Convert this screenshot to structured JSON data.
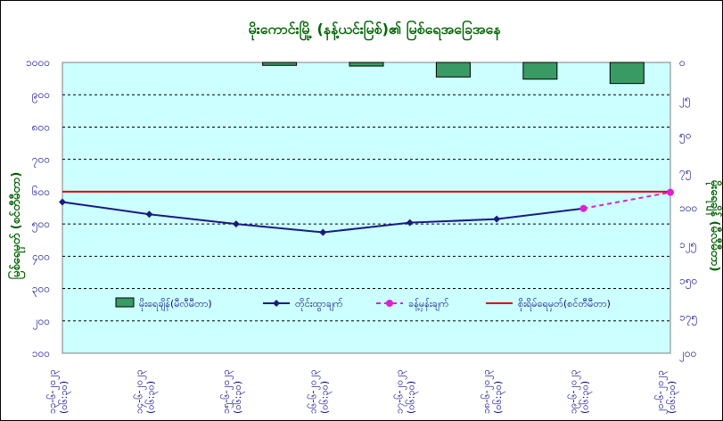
{
  "chart_data": {
    "type": "bar+line",
    "title": "မိုးကောင်းမြို့ (နန့်ယင်းမြစ်)၏ မြစ်ရေအခြေအနေ",
    "ylabel_left": "မြစ်ရေမှတ် (စင်တီမီတာ)",
    "ylabel_right": "မိုးရေချိန် (မီလီမီတာ)",
    "left_axis": {
      "min": 100,
      "max": 1000,
      "ticks": [
        "၁၀၀",
        "၂၀၀",
        "၃၀၀",
        "၄၀၀",
        "၅၀၀",
        "၆၀၀",
        "၇၀၀",
        "၈၀၀",
        "၉၀၀",
        "၁၀၀၀"
      ],
      "tick_values": [
        100,
        200,
        300,
        400,
        500,
        600,
        700,
        800,
        900,
        1000
      ]
    },
    "right_axis": {
      "min": 0,
      "max": 200,
      "inverted": true,
      "ticks": [
        "၀",
        "၂၅",
        "၅၀",
        "၇၅",
        "၁၀၀",
        "၁၂၅",
        "၁၅၀",
        "၁၇၅",
        "၂၀၀"
      ],
      "tick_values": [
        0,
        25,
        50,
        75,
        100,
        125,
        150,
        175,
        200
      ]
    },
    "categories": [
      {
        "line1": "၁၃-၆-၂၀၂၃",
        "line2": "(၀၆:၃၀)"
      },
      {
        "line1": "၁၄-၆-၂၀၂၃",
        "line2": "(၀၆:၃၀)"
      },
      {
        "line1": "၁၅-၆-၂၀၂၃",
        "line2": "(၀၆:၃၀)"
      },
      {
        "line1": "၁၆-၆-၂၀၂၃",
        "line2": "(၀၆:၃၀)"
      },
      {
        "line1": "၁၇-၆-၂၀၂၃",
        "line2": "(၀၆:၃၀)"
      },
      {
        "line1": "၁၈-၆-၂၀၂၃",
        "line2": "(၀၆:၃၀)"
      },
      {
        "line1": "၁၉-၆-၂၀၂၃",
        "line2": "(၀၆:၃၀)"
      },
      {
        "line1": "၂၀-၆-၂၀၂၃",
        "line2": "(၀၆:၃၀)"
      }
    ],
    "series": [
      {
        "name": "မိုးရေချိန်(မီလီမီတာ)",
        "kind": "bar",
        "axis": "right",
        "color": "#3a9a64",
        "values": [
          0,
          0,
          2,
          2.5,
          10,
          11.5,
          14.5,
          null
        ]
      },
      {
        "name": "တိုင်းထွာချက်",
        "kind": "line",
        "axis": "left",
        "color": "#1a1a80",
        "values": [
          568,
          530,
          500,
          474,
          504,
          515,
          548,
          null
        ]
      },
      {
        "name": "ခန့်မှန်းချက်",
        "kind": "dashed-line",
        "axis": "left",
        "color": "#e020d0",
        "values": [
          null,
          null,
          null,
          null,
          null,
          null,
          548,
          598
        ]
      },
      {
        "name": "စိုးရိမ်ရေမှတ်(စင်တီမီတာ)",
        "kind": "hline",
        "axis": "left",
        "color": "#e00000",
        "value": 600
      }
    ],
    "plot_background": "#ccffff",
    "grid": "dashed horizontal",
    "legend_position": "bottom-center inside plot"
  }
}
